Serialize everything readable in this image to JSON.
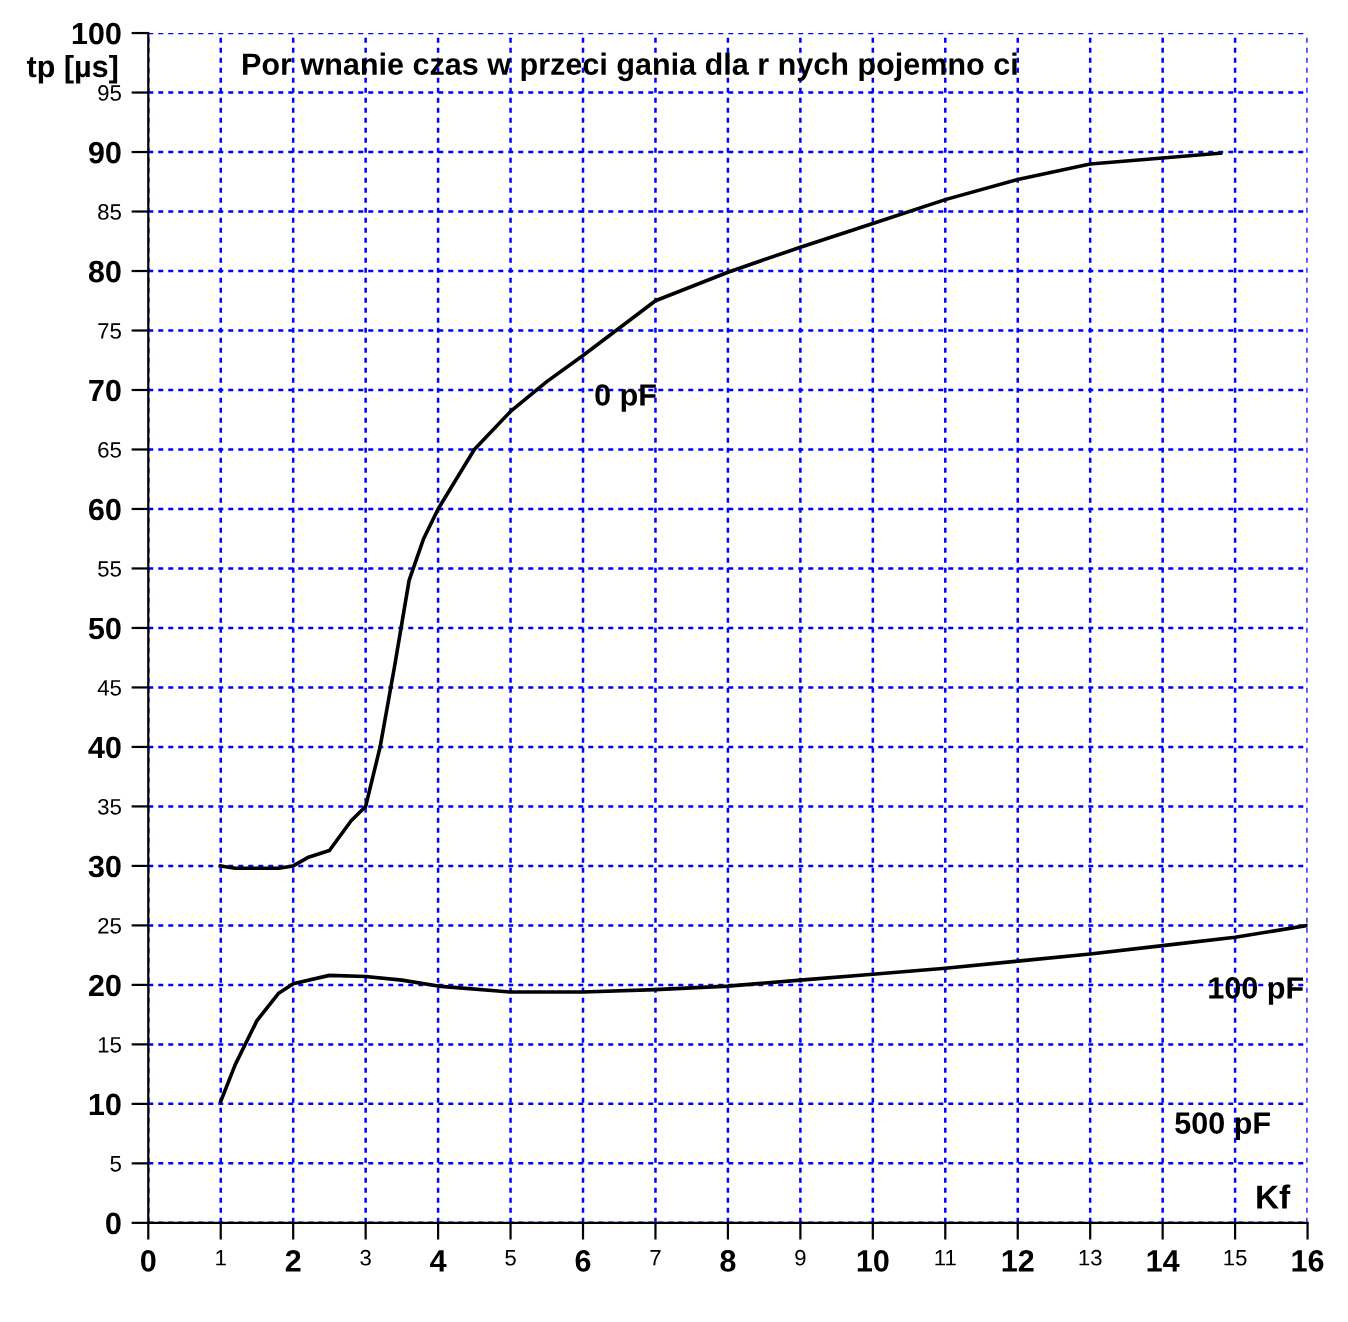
{
  "chart_data": {
    "type": "line",
    "title": "Por wnanie czas w przeci gania dla r nych pojemno ci",
    "xlabel": "Kf",
    "ylabel": "tp [µs]",
    "xlim": [
      0,
      16
    ],
    "xticks": [
      0,
      1,
      2,
      3,
      4,
      5,
      6,
      7,
      8,
      9,
      10,
      11,
      12,
      13,
      14,
      15,
      16
    ],
    "ylim": [
      0,
      100
    ],
    "yticks": [
      0,
      5,
      10,
      15,
      20,
      25,
      30,
      35,
      40,
      45,
      50,
      55,
      60,
      65,
      70,
      75,
      80,
      85,
      90,
      95,
      100
    ],
    "grid": true,
    "legend": false,
    "marker": "none",
    "line_style": "solid",
    "series": [
      {
        "name": "0 pF",
        "color": "#000000",
        "x": [
          1,
          1.2,
          1.8,
          2,
          2.2,
          2.5,
          2.8,
          3,
          3.2,
          3.4,
          3.6,
          3.8,
          4,
          4.5,
          5,
          5.5,
          6,
          7,
          8,
          9,
          10,
          11,
          12,
          13,
          14,
          14.8
        ],
        "values": [
          30,
          29.8,
          29.8,
          30,
          30.7,
          31.3,
          33.8,
          35,
          40,
          46.8,
          54,
          57.5,
          60,
          65,
          68.2,
          70.7,
          72.9,
          77.5,
          79.9,
          82,
          84,
          86,
          87.7,
          89,
          89.5,
          89.9
        ]
      },
      {
        "name": "100 pF",
        "color": "#000000",
        "x": [
          1,
          1.2,
          1.5,
          1.8,
          2,
          2.5,
          3,
          3.5,
          4,
          5,
          6,
          7,
          8,
          9,
          10,
          11,
          12,
          13,
          14,
          15,
          16
        ],
        "values": [
          10.2,
          13.3,
          17,
          19.3,
          20.1,
          20.8,
          20.7,
          20.4,
          19.9,
          19.4,
          19.4,
          19.6,
          19.9,
          20.4,
          20.9,
          21.4,
          22,
          22.6,
          23.3,
          24,
          25
        ]
      }
    ],
    "annotations": [
      "500 pF"
    ]
  }
}
